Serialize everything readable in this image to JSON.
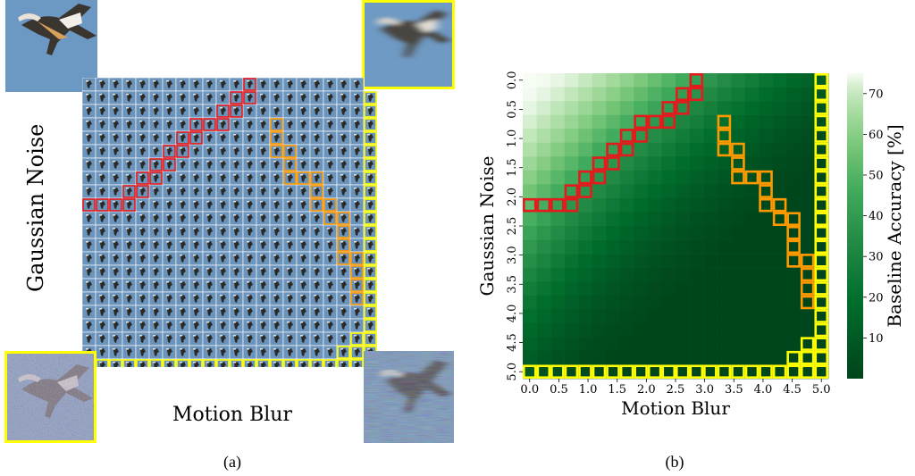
{
  "panel_a": {
    "caption": "(a)",
    "y_label": "Gaussian Noise",
    "x_label": "Motion Blur",
    "grid_size": 22,
    "corner_images": [
      "clean",
      "max-blur",
      "max-noise",
      "max-noise-and-blur"
    ]
  },
  "panel_b": {
    "caption": "(b)",
    "colorbar_label": "Baseline Accuracy [%]"
  },
  "colors": {
    "background_sky": "#6a95c0",
    "highlight_red": "#e41a1c",
    "highlight_orange": "#ff9900",
    "highlight_yellow": "#ffff00"
  },
  "chart_data": {
    "type": "heatmap",
    "title": "",
    "xlabel": "Motion Blur",
    "ylabel": "Gaussian Noise",
    "x_ticks": [
      "0.0",
      "0.5",
      "1.0",
      "1.5",
      "2.0",
      "2.5",
      "3.0",
      "3.5",
      "4.0",
      "4.5",
      "5.0"
    ],
    "y_ticks": [
      "0.0",
      "0.5",
      "1.0",
      "1.5",
      "2.0",
      "2.5",
      "3.0",
      "3.5",
      "4.0",
      "4.5",
      "5.0"
    ],
    "x_range": [
      0,
      5
    ],
    "y_range": [
      0,
      5
    ],
    "cells_per_axis": 22,
    "colormap": "Greens_r",
    "colorbar": {
      "label": "Baseline Accuracy [%]",
      "ticks": [
        "10",
        "20",
        "30",
        "40",
        "50",
        "60",
        "70"
      ],
      "range": [
        0,
        75
      ]
    },
    "accuracy_model": "approx. 75% at (0,0), dropping to ~1% at high noise/blur",
    "highlighted_boundaries": [
      {
        "name": "red",
        "color": "#e41a1c",
        "cells": [
          [
            0,
            9
          ],
          [
            1,
            9
          ],
          [
            2,
            9
          ],
          [
            3,
            9
          ],
          [
            3,
            8
          ],
          [
            4,
            8
          ],
          [
            4,
            7
          ],
          [
            5,
            7
          ],
          [
            5,
            6
          ],
          [
            6,
            6
          ],
          [
            6,
            5
          ],
          [
            7,
            5
          ],
          [
            7,
            4
          ],
          [
            8,
            4
          ],
          [
            8,
            3
          ],
          [
            9,
            3
          ],
          [
            10,
            3
          ],
          [
            10,
            2
          ],
          [
            11,
            2
          ],
          [
            11,
            1
          ],
          [
            12,
            1
          ],
          [
            12,
            0
          ]
        ]
      },
      {
        "name": "orange",
        "color": "#ff9900",
        "cells": [
          [
            14,
            3
          ],
          [
            14,
            4
          ],
          [
            14,
            5
          ],
          [
            15,
            5
          ],
          [
            15,
            6
          ],
          [
            15,
            7
          ],
          [
            16,
            7
          ],
          [
            17,
            7
          ],
          [
            17,
            8
          ],
          [
            17,
            9
          ],
          [
            18,
            9
          ],
          [
            18,
            10
          ],
          [
            19,
            10
          ],
          [
            19,
            11
          ],
          [
            19,
            12
          ],
          [
            19,
            13
          ],
          [
            20,
            13
          ],
          [
            20,
            14
          ],
          [
            20,
            15
          ],
          [
            20,
            16
          ],
          [
            21,
            16
          ],
          [
            21,
            17
          ]
        ]
      },
      {
        "name": "yellow",
        "color": "#ffff00",
        "cells": "last row (noise = 5.0) and last column (blur = 5.0) plus a small stair near the bottom-right corner"
      }
    ]
  }
}
